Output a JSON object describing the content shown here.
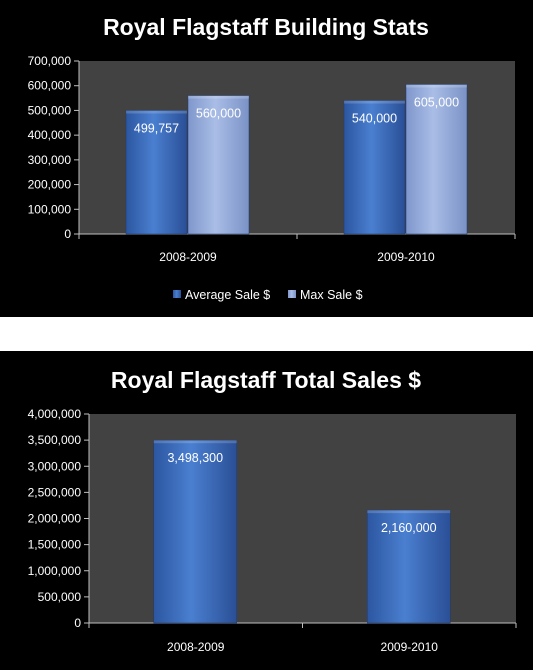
{
  "chart_data": [
    {
      "type": "bar",
      "title": "Royal Flagstaff Building Stats",
      "categories": [
        "2008-2009",
        "2009-2010"
      ],
      "series": [
        {
          "name": "Average Sale $",
          "values": [
            499757,
            540000
          ],
          "labels": [
            "499,757",
            "540,000"
          ],
          "color": "#3f6fc0"
        },
        {
          "name": "Max Sale $",
          "values": [
            560000,
            605000
          ],
          "labels": [
            "560,000",
            "605,000"
          ],
          "color": "#8fa7d8"
        }
      ],
      "ylim": [
        0,
        700000
      ],
      "yticks": [
        "0",
        "100,000",
        "200,000",
        "300,000",
        "400,000",
        "500,000",
        "600,000",
        "700,000"
      ],
      "legend_position": "bottom",
      "grid": false
    },
    {
      "type": "bar",
      "title": "Royal Flagstaff Total Sales $",
      "categories": [
        "2008-2009",
        "2009-2010"
      ],
      "series": [
        {
          "values": [
            3498300,
            2160000
          ],
          "labels": [
            "3,498,300",
            "2,160,000"
          ],
          "color": "#3f6fc0"
        }
      ],
      "ylim": [
        0,
        4000000
      ],
      "yticks": [
        "0",
        "500,000",
        "1,000,000",
        "1,500,000",
        "2,000,000",
        "2,500,000",
        "3,000,000",
        "3,500,000",
        "4,000,000"
      ],
      "grid": false
    }
  ],
  "colors": {
    "panel_background": "#000000",
    "plot_background": "#424242",
    "axis": "#bfbfbf",
    "text": "#ffffff"
  }
}
